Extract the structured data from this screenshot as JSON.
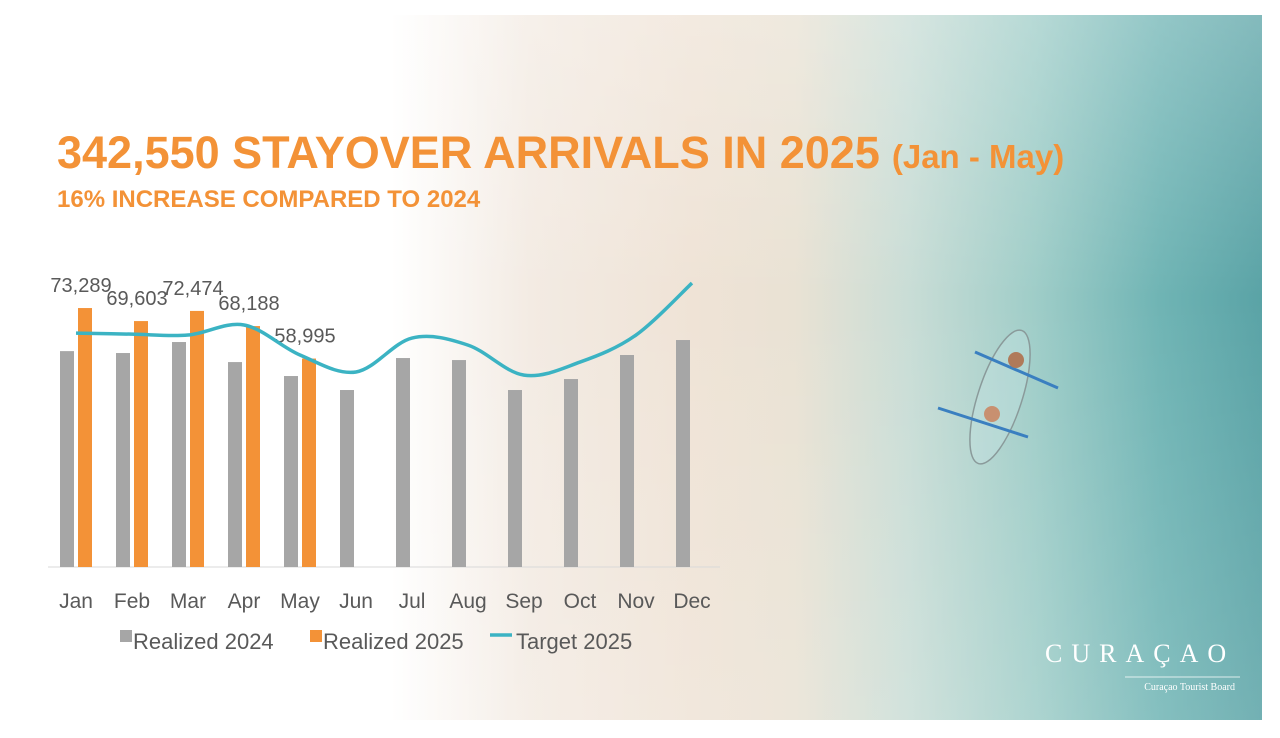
{
  "chart_data": {
    "type": "bar",
    "title": "342,550 STAYOVER ARRIVALS IN 2025",
    "title_suffix": "(Jan - May)",
    "subtitle": "16% INCREASE COMPARED TO 2024",
    "categories": [
      "Jan",
      "Feb",
      "Mar",
      "Apr",
      "May",
      "Jun",
      "Jul",
      "Aug",
      "Sep",
      "Oct",
      "Nov",
      "Dec"
    ],
    "ylim": [
      0,
      90000
    ],
    "series": [
      {
        "name": "Realized 2024",
        "type": "bar",
        "color": "#a6a6a6",
        "values": [
          61100,
          60560,
          63670,
          58000,
          54050,
          50090,
          59140,
          58570,
          50090,
          53200,
          60000,
          64240
        ]
      },
      {
        "name": "Realized 2025",
        "type": "bar",
        "color": "#f39237",
        "values": [
          73289,
          69603,
          72474,
          68188,
          58995,
          null,
          null,
          null,
          null,
          null,
          null,
          null
        ],
        "value_labels": [
          "73,289",
          "69,603",
          "72,474",
          "68,188",
          "58,995",
          null,
          null,
          null,
          null,
          null,
          null,
          null
        ]
      },
      {
        "name": "Target 2025",
        "type": "line",
        "color": "#3bb3c3",
        "values": [
          66200,
          65900,
          65650,
          68500,
          60000,
          55200,
          64800,
          62800,
          54300,
          58000,
          65650,
          80360
        ]
      }
    ]
  },
  "logo": {
    "name": "CURAÇAO",
    "tagline": "Curaçao Tourist Board"
  }
}
